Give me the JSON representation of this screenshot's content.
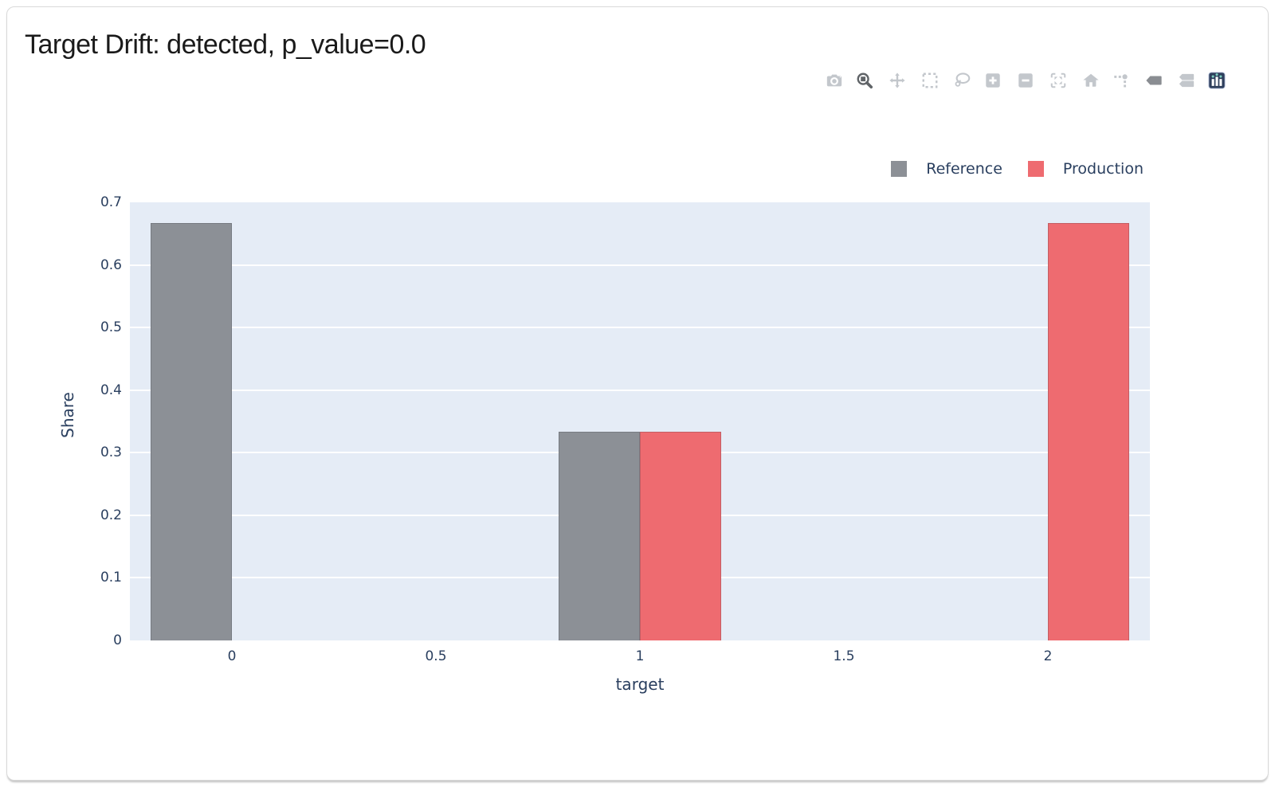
{
  "title": "Target Drift: detected, p_value=0.0",
  "colors": {
    "card_bg": "#FFFFFF",
    "plot_bg": "#E5ECF6",
    "grid": "#FFFFFF",
    "axis_text": "#2A3F5F",
    "title_text": "#1A1A1A",
    "reference": "#8C9096",
    "production": "#EE6B70",
    "modebar_inactive": "#C3C7CC",
    "modebar_active": "#606468",
    "plotly_logo_bg": "#2E3F5C"
  },
  "modebar": {
    "groups": [
      [
        {
          "icon": "camera-icon",
          "name": "download-png",
          "state": "inactive"
        }
      ],
      [
        {
          "icon": "zoom-icon",
          "name": "zoom",
          "state": "active"
        },
        {
          "icon": "pan-icon",
          "name": "pan",
          "state": "inactive"
        },
        {
          "icon": "box-select-icon",
          "name": "box-select",
          "state": "inactive"
        },
        {
          "icon": "lasso-icon",
          "name": "lasso-select",
          "state": "inactive"
        }
      ],
      [
        {
          "icon": "zoom-in-icon",
          "name": "zoom-in",
          "state": "inactive"
        },
        {
          "icon": "zoom-out-icon",
          "name": "zoom-out",
          "state": "inactive"
        },
        {
          "icon": "autoscale-icon",
          "name": "autoscale",
          "state": "inactive"
        },
        {
          "icon": "home-icon",
          "name": "reset-axes",
          "state": "inactive"
        }
      ],
      [
        {
          "icon": "spikelines-icon",
          "name": "toggle-spikelines",
          "state": "inactive"
        },
        {
          "icon": "hover-closest-icon",
          "name": "hover-closest",
          "state": "semi"
        },
        {
          "icon": "hover-compare-icon",
          "name": "hover-compare",
          "state": "inactive"
        }
      ],
      [
        {
          "icon": "plotly-logo-icon",
          "name": "plotly-logo",
          "state": "logo"
        }
      ]
    ]
  },
  "legend": {
    "items": [
      {
        "label": "Reference",
        "color": "#8C9096"
      },
      {
        "label": "Production",
        "color": "#EE6B70"
      }
    ]
  },
  "chart_data": {
    "type": "bar",
    "title": "Target Drift: detected, p_value=0.0",
    "xlabel": "target",
    "ylabel": "Share",
    "x": [
      0,
      1,
      2
    ],
    "series": [
      {
        "name": "Reference",
        "color": "#8C9096",
        "offset": -0.2,
        "values": [
          0.6667,
          0.3333,
          0
        ]
      },
      {
        "name": "Production",
        "color": "#EE6B70",
        "offset": 0.0,
        "values": [
          0,
          0.3333,
          0.6667
        ]
      }
    ],
    "bar_width": 0.2,
    "x_ticks": [
      "0",
      "0.5",
      "1",
      "1.5",
      "2"
    ],
    "x_tick_values": [
      0,
      0.5,
      1,
      1.5,
      2
    ],
    "y_ticks": [
      "0",
      "0.1",
      "0.2",
      "0.3",
      "0.4",
      "0.5",
      "0.6",
      "0.7"
    ],
    "y_tick_values": [
      0,
      0.1,
      0.2,
      0.3,
      0.4,
      0.5,
      0.6,
      0.7
    ],
    "xlim": [
      -0.25,
      2.25
    ],
    "ylim": [
      0,
      0.7
    ],
    "grid": "horizontal",
    "legend_position": "top-right-horizontal"
  }
}
